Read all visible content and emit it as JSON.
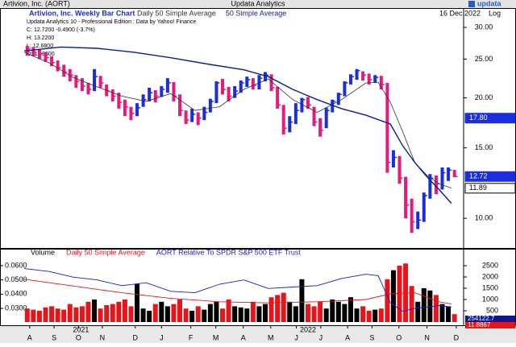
{
  "header": {
    "title": "Artivion, Inc. (AORT)",
    "center": "Updata Analytics",
    "logo": "updata"
  },
  "chart_data": [
    {
      "type": "ohlc",
      "title": "Artivion, Inc. Weekly Bar Chart",
      "date": "16 Dec 2022",
      "scale_label": "Log",
      "log": true,
      "info": [
        "Updata Analytics 10 - Professional Edition : Data by Yahoo! Finance",
        "C: 12.7200 -0.4900 (-3.7%)",
        "H: 13.2200",
        "L: 12.6800",
        "O: 12.8600"
      ],
      "up_color": "#1a2ee0",
      "down_color": "#e8197d",
      "high": [
        27.0,
        26.8,
        26.5,
        26.0,
        25.4,
        24.8,
        24.2,
        23.6,
        22.8,
        22.4,
        21.8,
        23.6,
        22.7,
        21.6,
        21.0,
        20.6,
        19.8,
        19.0,
        19.4,
        20.4,
        21.2,
        20.9,
        21.4,
        22.4,
        21.9,
        20.4,
        18.6,
        18.8,
        18.4,
        19.0,
        19.9,
        22.0,
        22.3,
        21.3,
        21.4,
        22.1,
        22.6,
        22.4,
        22.8,
        23.2,
        22.9,
        21.3,
        19.2,
        18.0,
        19.4,
        20.0,
        20.1,
        19.0,
        17.8,
        18.9,
        19.8,
        20.6,
        22.0,
        22.9,
        23.6,
        23.3,
        23.0,
        22.8,
        22.7,
        21.8,
        14.8,
        14.3,
        12.7,
        11.2,
        10.4,
        11.6,
        12.9,
        12.8,
        13.4,
        13.4,
        13.22
      ],
      "low": [
        25.5,
        25.4,
        25.0,
        24.6,
        24.0,
        23.3,
        22.6,
        22.0,
        21.2,
        20.8,
        20.4,
        20.8,
        21.2,
        20.2,
        19.6,
        18.8,
        18.0,
        17.6,
        18.0,
        19.0,
        19.6,
        19.5,
        20.1,
        20.6,
        19.6,
        18.0,
        17.2,
        17.4,
        17.1,
        17.6,
        18.4,
        19.4,
        20.4,
        19.6,
        20.0,
        20.6,
        21.3,
        21.0,
        21.0,
        22.0,
        20.8,
        18.8,
        16.2,
        16.4,
        17.2,
        18.4,
        18.8,
        17.0,
        16.0,
        16.8,
        18.4,
        19.2,
        20.2,
        21.6,
        22.2,
        22.1,
        21.6,
        21.8,
        21.0,
        13.0,
        13.4,
        12.2,
        10.0,
        9.2,
        9.4,
        9.8,
        11.2,
        11.5,
        11.8,
        12.4,
        12.68
      ],
      "close": [
        26.5,
        26.0,
        25.8,
        25.2,
        24.5,
        23.8,
        23.2,
        22.8,
        22.0,
        21.4,
        21.0,
        22.6,
        21.8,
        20.8,
        20.2,
        19.5,
        19.0,
        18.3,
        18.9,
        19.8,
        20.6,
        20.2,
        21.0,
        21.8,
        20.2,
        18.6,
        17.6,
        18.2,
        17.8,
        18.4,
        19.6,
        21.8,
        21.0,
        20.2,
        20.8,
        21.8,
        22.2,
        21.5,
        22.4,
        22.8,
        21.2,
        19.2,
        16.8,
        17.4,
        18.6,
        19.8,
        19.2,
        17.4,
        16.6,
        18.6,
        19.6,
        20.4,
        21.8,
        22.6,
        23.4,
        22.8,
        22.2,
        22.5,
        21.6,
        13.8,
        14.2,
        12.6,
        10.8,
        9.8,
        9.9,
        11.4,
        12.6,
        12.2,
        13.0,
        13.2,
        12.72
      ],
      "lines": [
        {
          "name": "Daily 50 Simple Average",
          "color": "#333333",
          "x": [
            0,
            4,
            8,
            12,
            16,
            20,
            24,
            28,
            32,
            36,
            40,
            44,
            48,
            52,
            56,
            58,
            60,
            62,
            64,
            66,
            68,
            70
          ],
          "values": [
            26.0,
            24.5,
            22.5,
            21.3,
            20.2,
            19.6,
            20.5,
            18.6,
            19.0,
            21.0,
            22.3,
            19.8,
            18.4,
            19.8,
            21.8,
            21.9,
            19.5,
            16.5,
            13.8,
            12.8,
            12.2,
            11.9
          ]
        },
        {
          "name": "50 Simple Average",
          "color": "#0a1f8f",
          "x": [
            0,
            6,
            12,
            18,
            24,
            30,
            36,
            40,
            44,
            48,
            52,
            56,
            60,
            62,
            64,
            66,
            68,
            70
          ],
          "values": [
            26.2,
            26.8,
            26.6,
            26.0,
            25.2,
            24.3,
            23.5,
            22.6,
            21.0,
            19.8,
            18.8,
            18.1,
            17.2,
            15.2,
            13.8,
            12.7,
            11.8,
            10.9
          ]
        }
      ],
      "price_tags": [
        {
          "value": 17.8,
          "label": "17.80",
          "color": "#1a2ee0"
        },
        {
          "value": 12.72,
          "label": "12.72",
          "color": "#1a2ee0"
        },
        {
          "value": 11.89,
          "label": "11.89",
          "color": "#ffffff"
        }
      ],
      "xlim": [
        0,
        72
      ],
      "ylim": [
        8.55,
        30.85
      ],
      "yticks": [
        {
          "value": 10,
          "label": "10.00"
        },
        {
          "value": 15,
          "label": "15.00"
        },
        {
          "value": 20,
          "label": "20.00"
        },
        {
          "value": 25,
          "label": "25.00"
        },
        {
          "value": 30,
          "label": "30.00"
        }
      ]
    },
    {
      "type": "bar",
      "up_color": "#000000",
      "down_color": "#e8141a",
      "series": [
        {
          "name": "Volume",
          "values": [
            600,
            550,
            500,
            650,
            700,
            600,
            550,
            800,
            650,
            700,
            900,
            1000,
            600,
            750,
            800,
            900,
            1000,
            700,
            1700,
            600,
            500,
            800,
            900,
            700,
            800,
            1000,
            600,
            500,
            700,
            550,
            800,
            900,
            600,
            1000,
            700,
            650,
            600,
            900,
            700,
            800,
            1100,
            1200,
            1300,
            900,
            700,
            1900,
            800,
            700,
            900,
            600,
            1000,
            900,
            800,
            1100,
            600,
            700,
            500,
            550,
            600,
            1900,
            2300,
            2500,
            2600,
            1600,
            900,
            1500,
            1400,
            1200,
            800,
            700,
            350
          ]
        },
        {
          "name": "Daily 50 Simple Average",
          "color": "#e8141a",
          "x": [
            0,
            8,
            16,
            24,
            32,
            40,
            48,
            56,
            60,
            64,
            68,
            70
          ],
          "values": [
            1900,
            1600,
            1300,
            1050,
            900,
            850,
            900,
            1000,
            1250,
            1300,
            900,
            800
          ]
        },
        {
          "name": "AORT Relative To SPDR S&P 500 ETF Trust",
          "color": "#1a1ad0",
          "axis": "y2",
          "x": [
            0,
            4,
            8,
            12,
            16,
            20,
            24,
            28,
            32,
            36,
            40,
            44,
            48,
            52,
            56,
            58,
            60,
            62,
            64,
            66,
            68,
            70
          ],
          "values": [
            0.058,
            0.056,
            0.052,
            0.05,
            0.046,
            0.048,
            0.042,
            0.041,
            0.047,
            0.05,
            0.044,
            0.045,
            0.046,
            0.051,
            0.054,
            0.053,
            0.034,
            0.028,
            0.03,
            0.031,
            0.032,
            0.031
          ]
        }
      ],
      "tags": [
        {
          "label": "254122.7",
          "color": "#0a1a8c"
        },
        {
          "label": "11.8867",
          "color": "#e8141a"
        }
      ],
      "xlim": [
        0,
        72
      ],
      "ylim": [
        0,
        2930
      ],
      "yticks": [
        500,
        1000,
        1500,
        2000,
        2500
      ],
      "y2lim": [
        0.0204,
        0.0668
      ],
      "y2ticks": [
        {
          "value": 0.03,
          "label": "0.0300"
        },
        {
          "value": 0.04,
          "label": "0.0400"
        },
        {
          "value": 0.05,
          "label": "0.0500"
        },
        {
          "value": 0.06,
          "label": "0.0600"
        }
      ],
      "xticks": [
        {
          "value": 0.9,
          "label": "A"
        },
        {
          "value": 4.9,
          "label": "S"
        },
        {
          "value": 8.9,
          "label": "O"
        },
        {
          "value": 12.8,
          "label": "N"
        },
        {
          "value": 18.2,
          "label": "D"
        },
        {
          "value": 22.5,
          "label": "J"
        },
        {
          "value": 27.3,
          "label": "F"
        },
        {
          "value": 31.4,
          "label": "M"
        },
        {
          "value": 35.9,
          "label": "A"
        },
        {
          "value": 40.4,
          "label": "M"
        },
        {
          "value": 44.6,
          "label": "J"
        },
        {
          "value": 48.6,
          "label": "J"
        },
        {
          "value": 53,
          "label": "A"
        },
        {
          "value": 57,
          "label": "S"
        },
        {
          "value": 61.4,
          "label": "O"
        },
        {
          "value": 66,
          "label": "N"
        },
        {
          "value": 70.8,
          "label": "D"
        }
      ],
      "year_ticks": [
        {
          "value": 9.3,
          "label": "2021"
        },
        {
          "value": 46.5,
          "label": "2022"
        }
      ]
    }
  ]
}
